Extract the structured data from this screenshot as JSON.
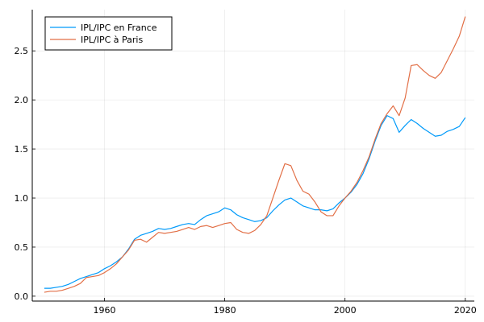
{
  "chart_data": {
    "type": "line",
    "title": "",
    "xlabel": "",
    "ylabel": "",
    "xlim": [
      1948,
      2021.5
    ],
    "ylim": [
      -0.05,
      2.92
    ],
    "xticks": [
      1960,
      1980,
      2000,
      2020
    ],
    "yticks": [
      0.0,
      0.5,
      1.0,
      1.5,
      2.0,
      2.5
    ],
    "xtick_labels": [
      "1960",
      "1980",
      "2000",
      "2020"
    ],
    "ytick_labels": [
      "0.0",
      "0.5",
      "1.0",
      "1.5",
      "2.0",
      "2.5"
    ],
    "grid": true,
    "legend_position": "top-left",
    "x": [
      1950,
      1951,
      1952,
      1953,
      1954,
      1955,
      1956,
      1957,
      1958,
      1959,
      1960,
      1961,
      1962,
      1963,
      1964,
      1965,
      1966,
      1967,
      1968,
      1969,
      1970,
      1971,
      1972,
      1973,
      1974,
      1975,
      1976,
      1977,
      1978,
      1979,
      1980,
      1981,
      1982,
      1983,
      1984,
      1985,
      1986,
      1987,
      1988,
      1989,
      1990,
      1991,
      1992,
      1993,
      1994,
      1995,
      1996,
      1997,
      1998,
      1999,
      2000,
      2001,
      2002,
      2003,
      2004,
      2005,
      2006,
      2007,
      2008,
      2009,
      2010,
      2011,
      2012,
      2013,
      2014,
      2015,
      2016,
      2017,
      2018,
      2019,
      2020
    ],
    "series": [
      {
        "name": "IPL/IPC en France",
        "color": "#009AFA",
        "values": [
          0.08,
          0.08,
          0.09,
          0.1,
          0.12,
          0.15,
          0.18,
          0.2,
          0.22,
          0.24,
          0.28,
          0.31,
          0.35,
          0.4,
          0.48,
          0.58,
          0.62,
          0.64,
          0.66,
          0.69,
          0.68,
          0.69,
          0.71,
          0.73,
          0.74,
          0.73,
          0.78,
          0.82,
          0.84,
          0.86,
          0.9,
          0.88,
          0.83,
          0.8,
          0.78,
          0.76,
          0.77,
          0.8,
          0.87,
          0.93,
          0.98,
          1.0,
          0.96,
          0.92,
          0.9,
          0.88,
          0.88,
          0.87,
          0.89,
          0.95,
          1.0,
          1.06,
          1.14,
          1.25,
          1.4,
          1.58,
          1.74,
          1.84,
          1.81,
          1.67,
          1.74,
          1.8,
          1.76,
          1.71,
          1.67,
          1.63,
          1.64,
          1.68,
          1.7,
          1.73,
          1.82
        ]
      },
      {
        "name": "IPL/IPC à Paris",
        "color": "#E26F46",
        "values": [
          0.04,
          0.05,
          0.05,
          0.06,
          0.08,
          0.1,
          0.13,
          0.19,
          0.2,
          0.21,
          0.24,
          0.28,
          0.33,
          0.4,
          0.47,
          0.57,
          0.58,
          0.55,
          0.6,
          0.65,
          0.64,
          0.65,
          0.66,
          0.68,
          0.7,
          0.68,
          0.71,
          0.72,
          0.7,
          0.72,
          0.74,
          0.75,
          0.68,
          0.65,
          0.64,
          0.67,
          0.73,
          0.82,
          1.0,
          1.18,
          1.35,
          1.33,
          1.18,
          1.07,
          1.04,
          0.96,
          0.86,
          0.82,
          0.82,
          0.92,
          1.0,
          1.07,
          1.16,
          1.28,
          1.42,
          1.6,
          1.76,
          1.86,
          1.94,
          1.84,
          2.02,
          2.35,
          2.36,
          2.3,
          2.25,
          2.22,
          2.28,
          2.4,
          2.52,
          2.65,
          2.85
        ]
      }
    ]
  }
}
